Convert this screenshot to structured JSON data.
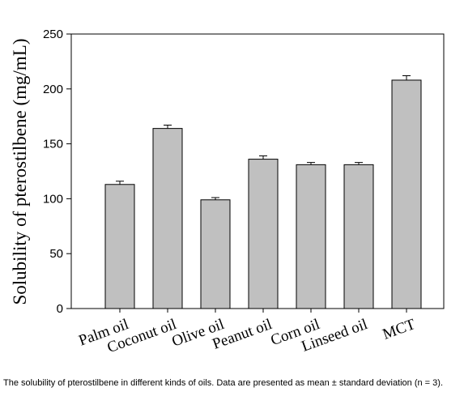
{
  "chart_data": {
    "type": "bar",
    "y_label": "Solubility of pterostilbene (mg/mL)",
    "categories": [
      "Palm oil",
      "Coconut oil",
      "Olive oil",
      "Peanut oil",
      "Corn oil",
      "Linseed oil",
      "MCT"
    ],
    "values": [
      113,
      164,
      99,
      136,
      131,
      131,
      208
    ],
    "errors": [
      3,
      3,
      2,
      3,
      2,
      2,
      4
    ],
    "color": "#c0c0c0",
    "ylim": [
      0,
      250
    ],
    "yticks": [
      0,
      50,
      100,
      150,
      200,
      250
    ],
    "grid": false
  },
  "caption": "The solubility of pterostilbene in different kinds of oils. Data are presented as mean ± standard deviation (n = 3)."
}
